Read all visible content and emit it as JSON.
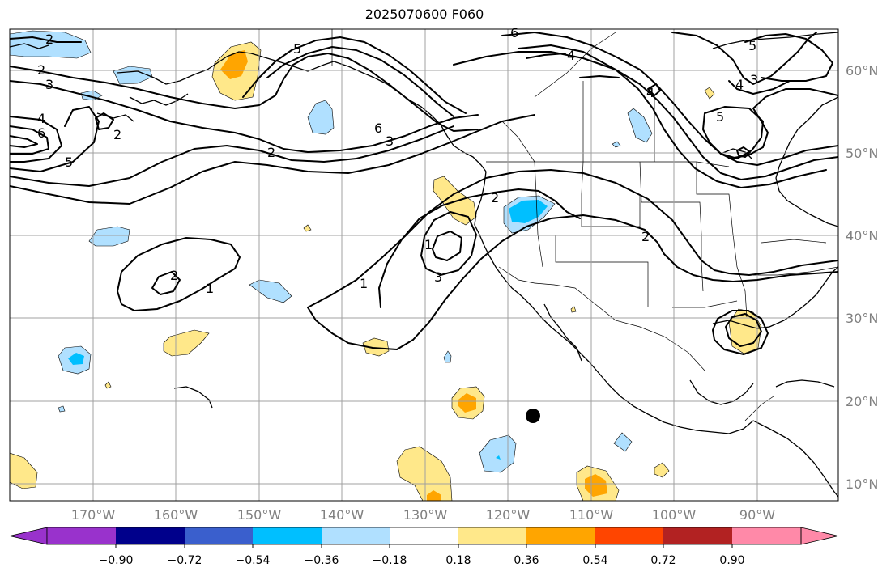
{
  "title": "2025070600 F060",
  "map": {
    "lat_labels": [
      "60°N",
      "50°N",
      "40°N",
      "30°N",
      "20°N",
      "10°N"
    ],
    "lon_labels": [
      "170°W",
      "160°W",
      "150°W",
      "140°W",
      "130°W",
      "120°W",
      "110°W",
      "100°W",
      "90°W"
    ],
    "contour_labels": [
      "2",
      "2",
      "3",
      "4",
      "6",
      "5",
      "2",
      "5",
      "2",
      "6",
      "3",
      "6",
      "4",
      "4",
      "3",
      "5",
      "5",
      "4",
      "2",
      "1",
      "3",
      "2",
      "2",
      "1",
      "1"
    ]
  },
  "colorbar": {
    "ticks": [
      "−0.90",
      "−0.72",
      "−0.54",
      "−0.36",
      "−0.18",
      "0.18",
      "0.36",
      "0.54",
      "0.72",
      "0.90"
    ],
    "colors": [
      "#9932cc",
      "#00008b",
      "#3a5fcd",
      "#00bfff",
      "#b0e0ff",
      "#ffffff",
      "#ffe88a",
      "#ffa500",
      "#ff4500",
      "#b22222",
      "#ff89a8",
      "#ff89a8"
    ]
  }
}
